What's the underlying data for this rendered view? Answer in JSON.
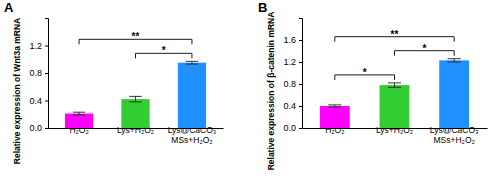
{
  "chart_data": [
    {
      "type": "bar",
      "panel_label": "A",
      "y_label": "Relative expression of Wnt3a mRNA",
      "categories": [
        "H₂O₂",
        "Lys+H₂O₂",
        "Lys@CaCO₃ MSs+H₂O₂"
      ],
      "values": [
        0.21,
        0.42,
        0.95
      ],
      "errors": [
        0.02,
        0.04,
        0.02
      ],
      "colors": [
        "#ff00ff",
        "#33cc33",
        "#1e90ff"
      ],
      "ylim": [
        0,
        1.6
      ],
      "yticks": [
        {
          "value": 0,
          "label": "0.0"
        },
        0.4,
        0.8,
        1.2
      ],
      "significance": [
        {
          "from": 1,
          "to": 2,
          "label": "*"
        },
        {
          "from": 0,
          "to": 2,
          "label": "**"
        }
      ]
    },
    {
      "type": "bar",
      "panel_label": "B",
      "y_label": "Relative expression of β-catenin mRNA",
      "categories": [
        "H₂O₂",
        "Lys+H₂O₂",
        "Lys@CaCO₃ MSs+H₂O₂"
      ],
      "values": [
        0.4,
        0.78,
        1.23
      ],
      "errors": [
        0.02,
        0.04,
        0.03
      ],
      "colors": [
        "#ff00ff",
        "#33cc33",
        "#1e90ff"
      ],
      "ylim": [
        0,
        2.0
      ],
      "yticks": [
        {
          "value": 0,
          "label": "0.0"
        },
        0.4,
        0.8,
        1.2,
        1.6
      ],
      "significance": [
        {
          "from": 0,
          "to": 1,
          "label": "*"
        },
        {
          "from": 1,
          "to": 2,
          "label": "*"
        },
        {
          "from": 0,
          "to": 2,
          "label": "**"
        }
      ]
    }
  ]
}
